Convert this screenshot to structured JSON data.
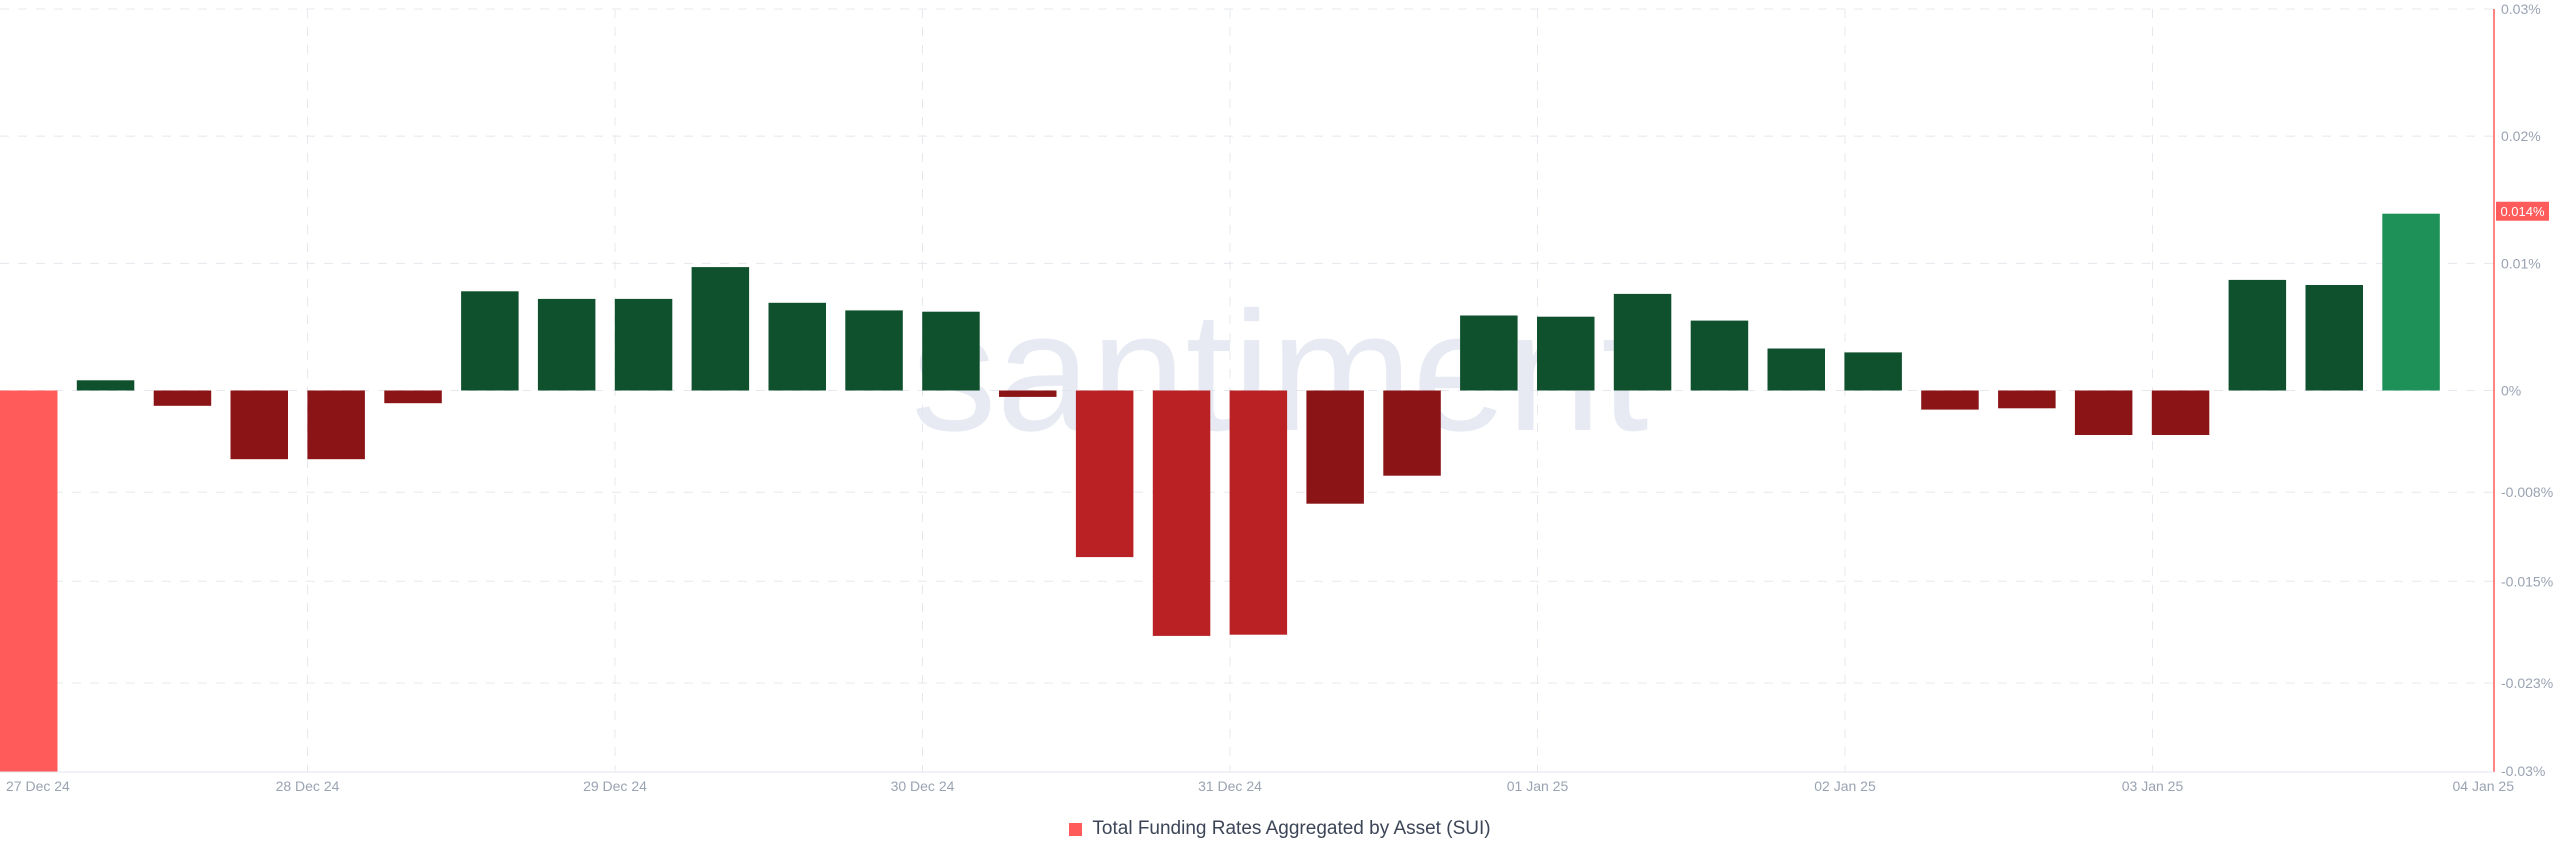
{
  "watermark": "santiment",
  "legend": {
    "label": "Total Funding Rates Aggregated by Asset (SUI)"
  },
  "current_value_label": "0.014%",
  "colors": {
    "positive_dark": "#0f512d",
    "positive_latest": "#1e9158",
    "negative_dark": "#8a1416",
    "negative_mid": "#ba2125",
    "negative_first": "#ff5b5b",
    "axis_accent": "#ff5b5b",
    "grid": "#e6e8ee"
  },
  "chart_data": {
    "type": "bar",
    "title": "",
    "xlabel": "",
    "ylabel": "",
    "ylim": [
      -0.03,
      0.03
    ],
    "grid": true,
    "legend_position": "bottom-center",
    "y_ticks": [
      0.03,
      0.02,
      0.01,
      0,
      -0.008,
      -0.015,
      -0.023,
      -0.03
    ],
    "y_tick_labels": [
      "0.03%",
      "0.02%",
      "0.01%",
      "0%",
      "-0.008%",
      "-0.015%",
      "-0.023%",
      "-0.03%"
    ],
    "x_tick_labels": [
      "27 Dec 24",
      "28 Dec 24",
      "29 Dec 24",
      "30 Dec 24",
      "31 Dec 24",
      "01 Jan 25",
      "02 Jan 25",
      "03 Jan 25",
      "04 Jan 25"
    ],
    "series": [
      {
        "name": "Total Funding Rates Aggregated by Asset (SUI)",
        "values": [
          -0.0302,
          0.0008,
          -0.0012,
          -0.0054,
          -0.0054,
          -0.001,
          0.0078,
          0.0072,
          0.0072,
          0.0097,
          0.0069,
          0.0063,
          0.0062,
          -0.0005,
          -0.0131,
          -0.0193,
          -0.0192,
          -0.0089,
          -0.0067,
          0.0059,
          0.0058,
          0.0076,
          0.0055,
          0.0033,
          0.003,
          -0.0015,
          -0.0014,
          -0.0035,
          -0.0035,
          0.0087,
          0.0083,
          0.0139
        ]
      }
    ]
  }
}
